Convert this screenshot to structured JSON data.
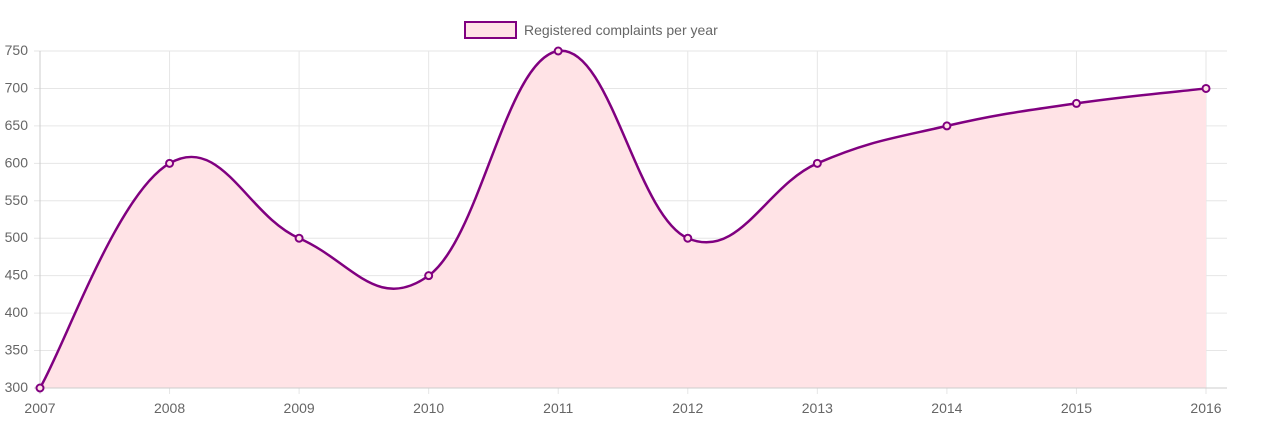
{
  "chart_data": {
    "type": "line",
    "title": "",
    "xlabel": "",
    "ylabel": "",
    "categories": [
      "2007",
      "2008",
      "2009",
      "2010",
      "2011",
      "2012",
      "2013",
      "2014",
      "2015",
      "2016"
    ],
    "series": [
      {
        "name": "Registered complaints per year",
        "values": [
          300,
          600,
          500,
          450,
          750,
          500,
          600,
          650,
          680,
          700
        ],
        "line_color": "#800080",
        "fill_color": "#ffe3e6",
        "point_color": "#800080",
        "curve": "smooth",
        "filled": true
      }
    ],
    "ylim": [
      300,
      750
    ],
    "y_ticks": [
      "750",
      "700",
      "650",
      "600",
      "550",
      "500",
      "450",
      "400",
      "350",
      "300"
    ],
    "grid": true,
    "legend_position": "top-center",
    "colors": {
      "grid": "#e6e6e6",
      "axis": "#cccccc",
      "tick_text": "#666666"
    }
  }
}
